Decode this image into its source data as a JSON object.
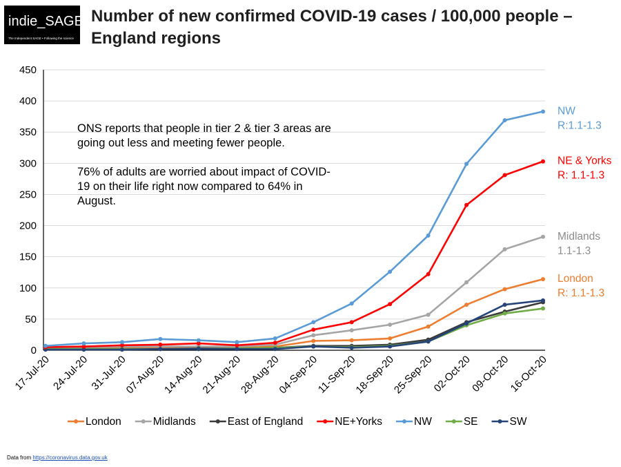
{
  "logo": {
    "text": "indie_SAGE",
    "tagline": "The Independent SAGE • Following the science"
  },
  "title": "Number of new confirmed COVID-19 cases / 100,000 people – England regions",
  "annotation": {
    "lines": [
      "ONS reports that people in tier 2 & tier 3 areas are going out less and meeting fewer people.",
      "76% of adults are worried about impact of COVID-19 on their life right now compared to 64% in August."
    ]
  },
  "source": {
    "prefix": "Data from",
    "link": "https://coronavirus.data.gov.uk"
  },
  "chart_data": {
    "type": "line",
    "title": "Number of new confirmed COVID-19 cases / 100,000 people – England regions",
    "xlabel": "",
    "ylabel": "",
    "ylim": [
      0,
      450
    ],
    "yticks": [
      0,
      50,
      100,
      150,
      200,
      250,
      300,
      350,
      400,
      450
    ],
    "grid": "horizontal",
    "legend_position": "bottom",
    "categories": [
      "17-Jul-20",
      "24-Jul-20",
      "31-Jul-20",
      "07-Aug-20",
      "14-Aug-20",
      "21-Aug-20",
      "28-Aug-20",
      "04-Sep-20",
      "11-Sep-20",
      "18-Sep-20",
      "25-Sep-20",
      "02-Oct-20",
      "09-Oct-20",
      "16-Oct-20"
    ],
    "series": [
      {
        "name": "London",
        "color": "#ed7d31",
        "values": [
          3,
          3,
          4,
          4,
          5,
          5,
          6,
          15,
          16,
          19,
          38,
          73,
          98,
          114
        ]
      },
      {
        "name": "Midlands",
        "color": "#a5a5a5",
        "values": [
          4,
          5,
          6,
          6,
          6,
          6,
          9,
          24,
          32,
          41,
          57,
          109,
          162,
          182
        ]
      },
      {
        "name": "East of England",
        "color": "#3b3b3b",
        "values": [
          2,
          2,
          2,
          2,
          3,
          3,
          4,
          7,
          7,
          9,
          17,
          45,
          62,
          77
        ]
      },
      {
        "name": "NE+Yorks",
        "color": "#ff0000",
        "values": [
          5,
          6,
          8,
          9,
          11,
          8,
          12,
          33,
          45,
          74,
          122,
          233,
          281,
          303
        ]
      },
      {
        "name": "NW",
        "color": "#5b9bd5",
        "values": [
          7,
          11,
          13,
          18,
          16,
          13,
          19,
          45,
          75,
          126,
          184,
          299,
          369,
          383
        ]
      },
      {
        "name": "SE",
        "color": "#70ad47",
        "values": [
          2,
          2,
          2,
          2,
          2,
          3,
          4,
          6,
          5,
          7,
          14,
          40,
          59,
          67
        ]
      },
      {
        "name": "SW",
        "color": "#264478",
        "values": [
          1,
          1,
          1,
          2,
          2,
          2,
          2,
          6,
          4,
          6,
          14,
          43,
          73,
          80
        ]
      }
    ],
    "end_labels": [
      {
        "series": "NW",
        "lines": [
          "NW",
          "R:1.1-1.3"
        ],
        "color": "#5b9bd5"
      },
      {
        "series": "NE+Yorks",
        "lines": [
          "NE & Yorks",
          "R: 1.1-1.3"
        ],
        "color": "#ff0000"
      },
      {
        "series": "Midlands",
        "lines": [
          "Midlands",
          "1.1-1.3"
        ],
        "color": "#8c8c8c"
      },
      {
        "series": "London",
        "lines": [
          "London",
          "R: 1.1-1.3"
        ],
        "color": "#ed7d31"
      }
    ]
  }
}
